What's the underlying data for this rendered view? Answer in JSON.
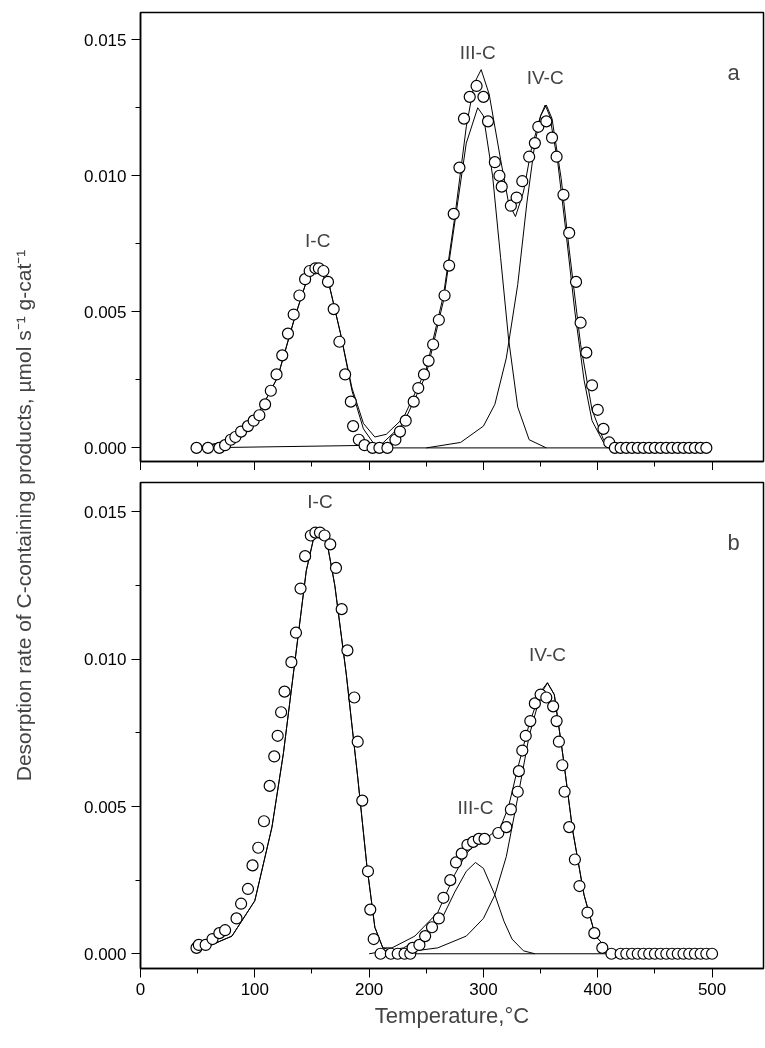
{
  "chart_data": [
    {
      "type": "scatter",
      "ylabel": "Desorption rate of C-containing products, µmol s⁻¹ g-cat⁻¹",
      "xlim": [
        0,
        545
      ],
      "ylim": [
        -0.0005,
        0.016
      ],
      "tick_labels": "y",
      "grid": false,
      "xticks": [
        0,
        {
          "value": 50,
          "label": null
        },
        100,
        {
          "value": 150,
          "label": null
        },
        200,
        {
          "value": 250,
          "label": null
        },
        300,
        {
          "value": 350,
          "label": null
        },
        400,
        {
          "value": 450,
          "label": null
        },
        500
      ],
      "yticks": [
        {
          "value": 0,
          "label": "0.000"
        },
        {
          "value": 0.0025,
          "label": null
        },
        {
          "value": 0.005,
          "label": "0.005"
        },
        {
          "value": 0.0075,
          "label": null
        },
        {
          "value": 0.01,
          "label": "0.010"
        },
        {
          "value": 0.0125,
          "label": null
        },
        {
          "value": 0.015,
          "label": "0.015"
        }
      ],
      "annotations": [
        "a",
        "I-C",
        "III-C",
        "IV-C"
      ],
      "series": [
        {
          "type": "line",
          "color": "#000000",
          "marker": "none",
          "x": [
            50,
            80,
            100,
            120,
            135,
            145,
            155,
            165,
            175,
            185,
            195,
            205,
            220,
            500
          ],
          "values": [
            0,
            0.0003,
            0.001,
            0.0026,
            0.0048,
            0.0061,
            0.0066,
            0.006,
            0.0042,
            0.0021,
            0.0007,
            0.0001,
            0,
            0
          ]
        },
        {
          "type": "line",
          "color": "#000000",
          "marker": "none",
          "x": [
            50,
            210,
            230,
            250,
            265,
            275,
            285,
            295,
            300,
            308,
            315,
            322,
            330,
            340,
            355
          ],
          "values": [
            0,
            0.0001,
            0.0009,
            0.0027,
            0.0054,
            0.0083,
            0.0112,
            0.0125,
            0.0122,
            0.01,
            0.007,
            0.004,
            0.0015,
            0.0003,
            0
          ]
        },
        {
          "type": "line",
          "color": "#000000",
          "marker": "none",
          "x": [
            250,
            280,
            300,
            310,
            320,
            330,
            338,
            345,
            350,
            354,
            358,
            365,
            372,
            380,
            388,
            395,
            405,
            420
          ],
          "values": [
            0,
            0.0002,
            0.0008,
            0.0016,
            0.0033,
            0.006,
            0.009,
            0.0112,
            0.0122,
            0.0126,
            0.0122,
            0.0105,
            0.008,
            0.005,
            0.0025,
            0.001,
            0.0002,
            0
          ]
        },
        {
          "type": "line",
          "color": "#000000",
          "marker": "none",
          "x": [
            50,
            80,
            100,
            120,
            135,
            145,
            155,
            165,
            175,
            185,
            195,
            205,
            215,
            230,
            250,
            265,
            275,
            285,
            292,
            298,
            305,
            315,
            322,
            328,
            335,
            342,
            350,
            355,
            360,
            368,
            375,
            385,
            395,
            405,
            415
          ],
          "values": [
            0,
            0.0003,
            0.001,
            0.0026,
            0.0048,
            0.0061,
            0.0066,
            0.006,
            0.0042,
            0.0022,
            0.0009,
            0.0004,
            0.0005,
            0.0011,
            0.0029,
            0.0056,
            0.0085,
            0.0118,
            0.0134,
            0.0139,
            0.013,
            0.0106,
            0.009,
            0.0085,
            0.0094,
            0.011,
            0.0122,
            0.0126,
            0.0121,
            0.0099,
            0.0073,
            0.0038,
            0.0014,
            0.0003,
            0
          ]
        },
        {
          "color": "#000000",
          "marker": "circle",
          "x": [
            49,
            59,
            69,
            74,
            79,
            83,
            88,
            94,
            99,
            104,
            109,
            114,
            119,
            124,
            129,
            134,
            139,
            144,
            148,
            153,
            156,
            160,
            164,
            169,
            174,
            179,
            184,
            186,
            191,
            196,
            203,
            209,
            216,
            223,
            227,
            232,
            239,
            243,
            248,
            252,
            256,
            261,
            266,
            270,
            274,
            279,
            283,
            288,
            294,
            300,
            304,
            310,
            314,
            316,
            324,
            329,
            334,
            340,
            345,
            348,
            355,
            360,
            364,
            370,
            375,
            381,
            385,
            390,
            395,
            400,
            405,
            410,
            415,
            420,
            425,
            430,
            435,
            440,
            445,
            450,
            455,
            460,
            465,
            470,
            475,
            480,
            485,
            490,
            495
          ],
          "values": [
            0,
            0,
            0,
            0.0001,
            0.0003,
            0.0004,
            0.0006,
            0.0008,
            0.001,
            0.0012,
            0.0016,
            0.0021,
            0.0027,
            0.0034,
            0.0042,
            0.0049,
            0.0056,
            0.0062,
            0.0065,
            0.0066,
            0.0066,
            0.0065,
            0.0061,
            0.0051,
            0.0039,
            0.0027,
            0.0017,
            0.0008,
            0.0003,
            0.0001,
            0,
            0,
            0,
            0.0003,
            0.0006,
            0.001,
            0.0017,
            0.0022,
            0.0027,
            0.0032,
            0.0038,
            0.0047,
            0.0056,
            0.0067,
            0.0086,
            0.0103,
            0.0121,
            0.0129,
            0.0133,
            0.0129,
            0.012,
            0.0105,
            0.01,
            0.0096,
            0.0089,
            0.0092,
            0.0098,
            0.0107,
            0.0112,
            0.0118,
            0.012,
            0.0114,
            0.0107,
            0.0093,
            0.0079,
            0.0061,
            0.0046,
            0.0035,
            0.0023,
            0.0014,
            0.0007,
            0.0002,
            0,
            0,
            0,
            0,
            0,
            0,
            0,
            0,
            0,
            0,
            0,
            0,
            0,
            0,
            0,
            0,
            0
          ]
        }
      ]
    },
    {
      "type": "scatter",
      "xlabel": "Temperature,°C",
      "xlim": [
        0,
        545
      ],
      "ylim": [
        -0.0005,
        0.016
      ],
      "grid": false,
      "xticks": [
        0,
        {
          "value": 50,
          "label": null
        },
        100,
        {
          "value": 150,
          "label": null
        },
        200,
        {
          "value": 250,
          "label": null
        },
        300,
        {
          "value": 350,
          "label": null
        },
        400,
        {
          "value": 450,
          "label": null
        },
        500
      ],
      "yticks": [
        {
          "value": 0,
          "label": "0.000"
        },
        {
          "value": 0.0025,
          "label": null
        },
        {
          "value": 0.005,
          "label": "0.005"
        },
        {
          "value": 0.0075,
          "label": null
        },
        {
          "value": 0.01,
          "label": "0.010"
        },
        {
          "value": 0.0125,
          "label": null
        },
        {
          "value": 0.015,
          "label": "0.015"
        }
      ],
      "annotations": [
        "b",
        "I-C",
        "III-C",
        "IV-C"
      ],
      "series": [
        {
          "type": "line",
          "color": "#000000",
          "marker": "none",
          "x": [
            50,
            80,
            100,
            115,
            125,
            135,
            145,
            152,
            157,
            163,
            170,
            180,
            190,
            198,
            205,
            212,
            230,
            500
          ],
          "values": [
            0.0001,
            0.0006,
            0.0018,
            0.0043,
            0.0068,
            0.0099,
            0.013,
            0.0142,
            0.0144,
            0.014,
            0.0125,
            0.0095,
            0.006,
            0.003,
            0.0009,
            0.0002,
            0,
            0
          ]
        },
        {
          "type": "line",
          "color": "#000000",
          "marker": "none",
          "x": [
            200,
            230,
            250,
            265,
            275,
            285,
            293,
            300,
            310,
            318,
            325,
            335,
            345
          ],
          "values": [
            0,
            0.0002,
            0.0006,
            0.0013,
            0.0021,
            0.0028,
            0.0031,
            0.0029,
            0.002,
            0.0011,
            0.0005,
            0.0001,
            0
          ]
        },
        {
          "type": "line",
          "color": "#000000",
          "marker": "none",
          "x": [
            220,
            260,
            285,
            300,
            310,
            320,
            330,
            340,
            350,
            356,
            362,
            370,
            378,
            388,
            398,
            410,
            420
          ],
          "values": [
            0,
            0.0002,
            0.0006,
            0.0012,
            0.002,
            0.0033,
            0.0053,
            0.0074,
            0.0088,
            0.0092,
            0.0088,
            0.0066,
            0.0042,
            0.002,
            0.0006,
            0.0001,
            0
          ]
        },
        {
          "type": "line",
          "color": "#000000",
          "marker": "none",
          "x": [
            50,
            80,
            100,
            115,
            125,
            135,
            145,
            152,
            157,
            163,
            170,
            180,
            190,
            198,
            205,
            212,
            220,
            240,
            260,
            275,
            285,
            295,
            305,
            315,
            322,
            330,
            340,
            350,
            356,
            362,
            370,
            378,
            388,
            398,
            410,
            420
          ],
          "values": [
            0.0001,
            0.0006,
            0.0018,
            0.0043,
            0.0068,
            0.0099,
            0.013,
            0.0142,
            0.0144,
            0.014,
            0.0125,
            0.0095,
            0.006,
            0.003,
            0.0009,
            0.0002,
            0.0002,
            0.0006,
            0.0014,
            0.0027,
            0.0034,
            0.0038,
            0.004,
            0.0043,
            0.005,
            0.0063,
            0.0078,
            0.0089,
            0.0092,
            0.0088,
            0.0066,
            0.0042,
            0.002,
            0.0006,
            0.0001,
            0
          ]
        },
        {
          "color": "#000000",
          "marker": "circle",
          "x": [
            49,
            51,
            57,
            63,
            69,
            74,
            84,
            88,
            94,
            98,
            103,
            108,
            113,
            117,
            120,
            123,
            126,
            132,
            136,
            140,
            144,
            149,
            153,
            157,
            161,
            166,
            171,
            176,
            181,
            187,
            190,
            194,
            199,
            201,
            204,
            210,
            219,
            225,
            231,
            236,
            238,
            244,
            249,
            255,
            261,
            265,
            271,
            276,
            281,
            286,
            291,
            296,
            301,
            313,
            320,
            324,
            330,
            331,
            334,
            337,
            341,
            345,
            350,
            355,
            361,
            364,
            366,
            369,
            371,
            375,
            380,
            384,
            391,
            397,
            404,
            412,
            420,
            425,
            430,
            435,
            440,
            445,
            450,
            455,
            460,
            465,
            470,
            475,
            480,
            485,
            490,
            495,
            500
          ],
          "values": [
            0.0002,
            0.0003,
            0.0003,
            0.0005,
            0.0007,
            0.0008,
            0.0012,
            0.0017,
            0.0022,
            0.003,
            0.0036,
            0.0045,
            0.0057,
            0.0067,
            0.0074,
            0.0082,
            0.0089,
            0.0099,
            0.0109,
            0.0124,
            0.0135,
            0.0142,
            0.0143,
            0.0143,
            0.0142,
            0.0139,
            0.0131,
            0.0117,
            0.0103,
            0.0087,
            0.0072,
            0.0052,
            0.0028,
            0.0015,
            0.0005,
            0,
            0,
            0,
            0,
            0,
            0.0002,
            0.0003,
            0.0006,
            0.0009,
            0.0012,
            0.0019,
            0.0025,
            0.0031,
            0.0034,
            0.0037,
            0.0038,
            0.0039,
            0.0039,
            0.0041,
            0.0043,
            0.0049,
            0.0055,
            0.0062,
            0.0069,
            0.0074,
            0.0079,
            0.0085,
            0.0088,
            0.0087,
            0.0084,
            0.0079,
            0.0072,
            0.0064,
            0.0055,
            0.0043,
            0.0032,
            0.0023,
            0.0014,
            0.0007,
            0.0002,
            0,
            0,
            0,
            0,
            0,
            0,
            0,
            0,
            0,
            0,
            0,
            0,
            0,
            0,
            0,
            0,
            0,
            0
          ]
        }
      ]
    }
  ]
}
